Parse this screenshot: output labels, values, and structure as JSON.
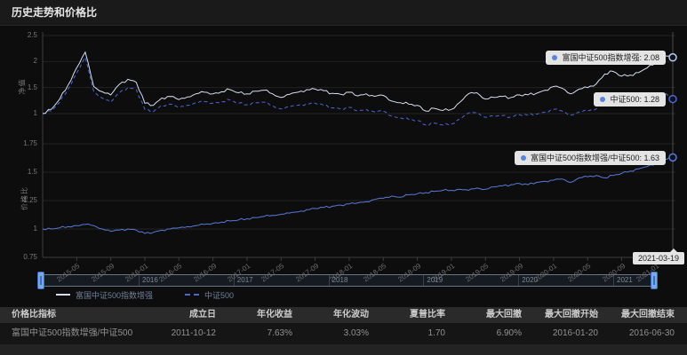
{
  "page": {
    "title": "历史走势和价格比"
  },
  "colors": {
    "fund_line": "#d2deef",
    "index_line": "#4e68cf",
    "ratio_line": "#5a7ad8",
    "accent": "#5a85d8",
    "label_bg": "#e4e4e4",
    "grid": "#222222",
    "axis": "#3d3d3d"
  },
  "charts": {
    "top": {
      "axis_name": "净值",
      "end_labels": [
        {
          "text": "富国中证500指数增强: 2.08"
        },
        {
          "text": "中证500: 1.28"
        }
      ]
    },
    "bottom": {
      "axis_name": "价格比",
      "end_labels": [
        {
          "text": "富国中证500指数增强/中证500: 1.63"
        }
      ]
    },
    "x_ticks": {
      "labels": [
        "2015-05",
        "2015-09",
        "2016-01",
        "2016-05",
        "2016-09",
        "2017-01",
        "2017-05",
        "2017-09",
        "2018-01",
        "2018-05",
        "2018-09",
        "2019-01",
        "2019-05",
        "2019-09",
        "2020-01",
        "2020-05",
        "2020-09",
        "2021-01"
      ],
      "month_index": [
        4,
        8,
        12,
        16,
        20,
        24,
        28,
        32,
        36,
        40,
        44,
        48,
        52,
        56,
        60,
        64,
        68,
        72
      ]
    },
    "axis_pointer_label": "2021-03-19"
  },
  "slider": {
    "year_labels": [
      "2016",
      "2017",
      "2018",
      "2019",
      "2020",
      "2021"
    ]
  },
  "legend": {
    "items": [
      {
        "label": "富国中证500指数增强",
        "style": "solid"
      },
      {
        "label": "中证500",
        "style": "dashed"
      }
    ]
  },
  "table": {
    "headers": [
      "价格比指标",
      "成立日",
      "年化收益",
      "年化波动",
      "夏普比率",
      "最大回撤",
      "最大回撤开始",
      "最大回撤结束"
    ],
    "rows": [
      [
        "富国中证500指数增强/中证500",
        "2011-10-12",
        "7.63%",
        "3.03%",
        "1.70",
        "6.90%",
        "2016-01-20",
        "2016-06-30"
      ]
    ]
  },
  "chart_data": [
    {
      "type": "line",
      "title": "历史走势",
      "ylabel": "净值",
      "x_start": "2015-01",
      "x_end": "2021-03",
      "x_unit": "month",
      "ylim": [
        0.5,
        2.5
      ],
      "y_ticks": [
        2.5,
        2,
        1.5,
        1
      ],
      "legend_position": "bottom",
      "grid": true,
      "series": [
        {
          "name": "富国中证500指数增强",
          "style": "solid",
          "end_value": 2.08,
          "values": [
            1.0,
            1.08,
            1.28,
            1.55,
            1.88,
            2.18,
            1.52,
            1.42,
            1.36,
            1.56,
            1.66,
            1.6,
            1.2,
            1.16,
            1.3,
            1.33,
            1.27,
            1.32,
            1.38,
            1.41,
            1.38,
            1.42,
            1.46,
            1.4,
            1.38,
            1.43,
            1.45,
            1.38,
            1.31,
            1.37,
            1.41,
            1.46,
            1.47,
            1.44,
            1.39,
            1.37,
            1.41,
            1.34,
            1.38,
            1.33,
            1.35,
            1.24,
            1.21,
            1.18,
            1.16,
            1.05,
            1.1,
            1.06,
            1.08,
            1.22,
            1.38,
            1.4,
            1.28,
            1.31,
            1.33,
            1.31,
            1.36,
            1.36,
            1.39,
            1.45,
            1.52,
            1.49,
            1.38,
            1.47,
            1.5,
            1.57,
            1.76,
            1.81,
            1.72,
            1.74,
            1.79,
            1.88,
            1.97,
            2.12,
            2.08
          ]
        },
        {
          "name": "中证500",
          "style": "dashed",
          "end_value": 1.28,
          "values": [
            1.0,
            1.05,
            1.22,
            1.47,
            1.78,
            2.08,
            1.42,
            1.3,
            1.22,
            1.4,
            1.5,
            1.46,
            1.08,
            1.04,
            1.16,
            1.18,
            1.12,
            1.16,
            1.21,
            1.23,
            1.2,
            1.23,
            1.26,
            1.2,
            1.17,
            1.21,
            1.22,
            1.15,
            1.09,
            1.13,
            1.16,
            1.19,
            1.2,
            1.16,
            1.11,
            1.09,
            1.12,
            1.05,
            1.08,
            1.03,
            1.05,
            0.95,
            0.92,
            0.89,
            0.87,
            0.78,
            0.82,
            0.78,
            0.8,
            0.9,
            1.01,
            1.02,
            0.93,
            0.95,
            0.96,
            0.94,
            0.98,
            0.97,
            0.99,
            1.03,
            1.08,
            1.05,
            0.97,
            1.03,
            1.05,
            1.09,
            1.22,
            1.25,
            1.18,
            1.19,
            1.22,
            1.27,
            1.32,
            1.41,
            1.28
          ]
        }
      ]
    },
    {
      "type": "line",
      "title": "价格比",
      "ylabel": "价格比",
      "x_start": "2015-01",
      "x_end": "2021-03",
      "x_unit": "month",
      "ylim": [
        0.75,
        1.75
      ],
      "y_ticks": [
        1.75,
        1.5,
        1.25,
        1,
        0.75
      ],
      "grid": true,
      "series": [
        {
          "name": "富国中证500指数增强/中证500",
          "style": "solid",
          "end_value": 1.63,
          "values": [
            1.0,
            1.0,
            1.01,
            1.02,
            1.03,
            1.04,
            1.03,
            1.0,
            0.98,
            0.99,
            1.0,
            0.99,
            0.96,
            0.97,
            0.99,
            1.0,
            1.01,
            1.02,
            1.03,
            1.04,
            1.05,
            1.06,
            1.07,
            1.08,
            1.09,
            1.1,
            1.11,
            1.12,
            1.13,
            1.14,
            1.15,
            1.17,
            1.18,
            1.19,
            1.2,
            1.21,
            1.22,
            1.23,
            1.24,
            1.26,
            1.27,
            1.29,
            1.28,
            1.3,
            1.31,
            1.32,
            1.33,
            1.34,
            1.34,
            1.35,
            1.34,
            1.36,
            1.35,
            1.37,
            1.38,
            1.39,
            1.4,
            1.39,
            1.41,
            1.42,
            1.43,
            1.44,
            1.41,
            1.45,
            1.46,
            1.47,
            1.45,
            1.47,
            1.49,
            1.51,
            1.53,
            1.55,
            1.57,
            1.61,
            1.63
          ]
        }
      ]
    }
  ]
}
